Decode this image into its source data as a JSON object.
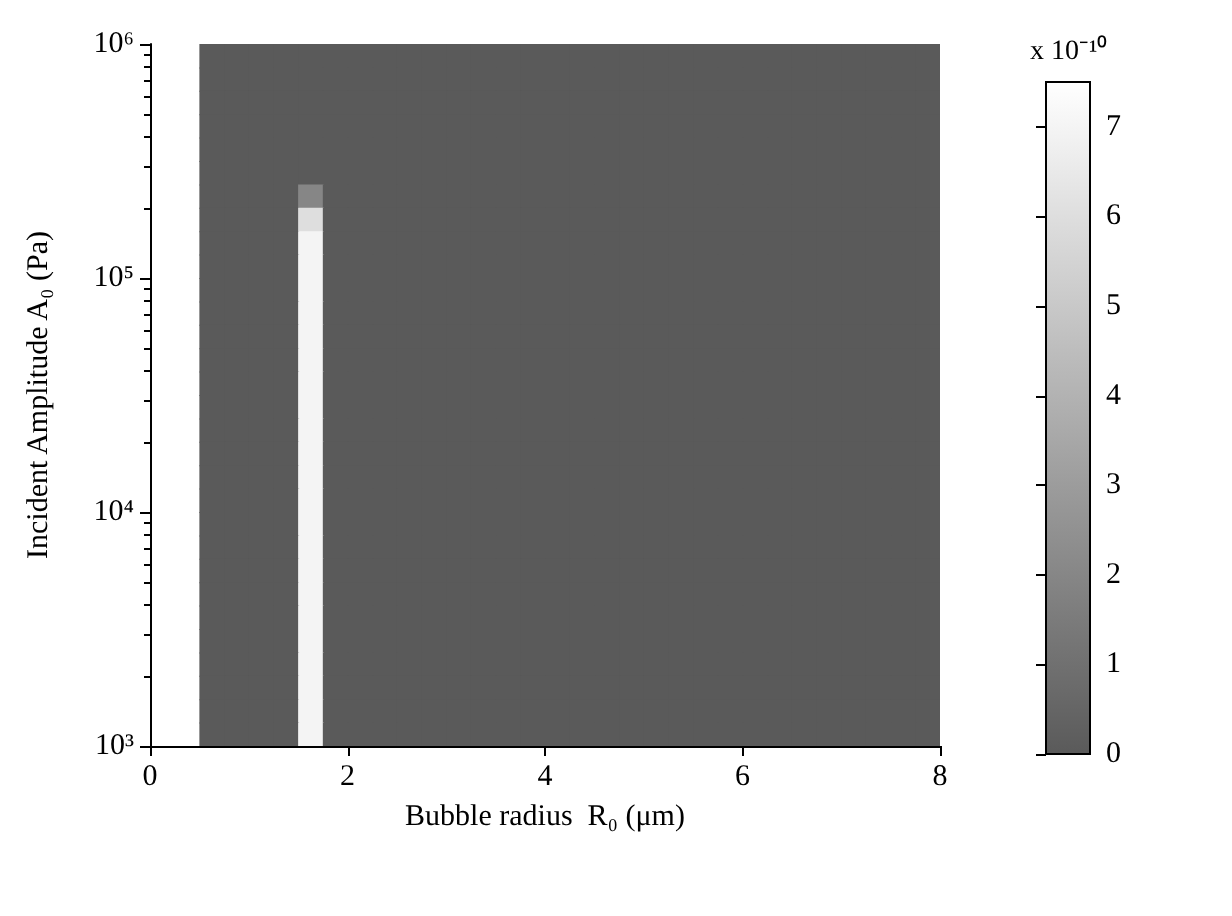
{
  "chart_data": {
    "type": "heatmap",
    "xlabel": "Bubble radius  R₀ (μm)",
    "ylabel": "Incident Amplitude A₀ (Pa)",
    "clabel": "x 10⁻¹⁰",
    "x": [
      0.625,
      0.875,
      1.125,
      1.375,
      1.625,
      1.875,
      2.125,
      2.375,
      2.625,
      2.875,
      3.125,
      3.375,
      3.625,
      3.875,
      4.125,
      4.375,
      4.625,
      4.875,
      5.125,
      5.375,
      5.625,
      5.875,
      6.125,
      6.375,
      6.625,
      6.875,
      7.125,
      7.375,
      7.625,
      7.875
    ],
    "cells": [
      [
        0,
        0,
        0,
        0,
        0,
        0,
        0,
        0,
        0,
        0,
        0,
        0,
        0,
        0,
        0,
        0,
        0,
        0,
        0,
        0,
        0,
        0,
        0,
        0,
        0,
        0,
        0,
        0,
        0,
        0
      ],
      [
        0,
        0,
        0,
        0,
        0,
        0,
        0,
        0,
        0,
        0,
        0,
        0,
        0,
        0,
        0,
        0,
        0,
        0,
        0,
        0,
        0,
        0,
        0,
        0,
        0,
        0,
        0,
        0,
        0,
        0
      ],
      [
        0,
        0,
        0,
        0,
        0,
        0,
        0,
        0,
        0,
        0,
        0,
        0,
        0,
        0,
        0,
        0,
        0,
        0,
        0,
        0,
        0,
        0,
        0,
        0,
        0,
        0,
        0,
        0,
        0,
        0
      ],
      [
        0,
        0,
        0,
        0,
        0,
        0,
        0,
        0,
        0,
        0,
        0,
        0,
        0,
        0,
        0,
        0,
        0,
        0,
        0,
        0,
        0,
        0,
        0,
        0,
        0,
        0,
        0,
        0,
        0,
        0
      ],
      [
        0,
        0,
        0,
        0,
        0,
        0,
        0,
        0,
        0,
        0,
        0,
        0,
        0,
        0,
        0,
        0,
        0,
        0,
        0,
        0,
        0,
        0,
        0,
        0,
        0,
        0,
        0,
        0,
        0,
        0
      ],
      [
        0,
        0,
        0,
        0,
        0,
        0,
        0,
        0,
        0,
        0,
        0,
        0,
        0,
        0,
        0,
        0,
        0,
        0,
        0,
        0,
        0,
        0,
        0,
        0,
        0,
        0,
        0,
        0,
        0,
        0
      ],
      [
        0,
        0,
        0,
        0,
        2,
        0,
        0,
        0,
        0,
        0,
        0,
        0,
        0,
        0,
        0,
        0,
        0,
        0,
        0,
        0,
        0,
        0,
        0,
        0,
        0,
        0,
        0,
        0,
        0,
        0
      ],
      [
        0,
        0,
        0,
        0,
        6,
        0,
        0,
        0,
        0,
        0,
        0,
        0,
        0,
        0,
        0,
        0,
        0,
        0,
        0,
        0,
        0,
        0,
        0,
        0,
        0,
        0,
        0,
        0,
        0,
        0
      ],
      [
        0,
        0,
        0,
        0,
        7,
        0,
        0,
        0,
        0,
        0,
        0,
        0,
        0,
        0,
        0,
        0,
        0,
        0,
        0,
        0,
        0,
        0,
        0,
        0,
        0,
        0,
        0,
        0,
        0,
        0
      ],
      [
        0,
        0,
        0,
        0,
        7,
        0,
        0,
        0,
        0,
        0,
        0,
        0,
        0,
        0,
        0,
        0,
        0,
        0,
        0,
        0,
        0,
        0,
        0,
        0,
        0,
        0,
        0,
        0,
        0,
        0
      ],
      [
        0,
        0,
        0,
        0,
        7,
        0,
        0,
        0,
        0,
        0,
        0,
        0,
        0,
        0,
        0,
        0,
        0,
        0,
        0,
        0,
        0,
        0,
        0,
        0,
        0,
        0,
        0,
        0,
        0,
        0
      ],
      [
        0,
        0,
        0,
        0,
        7,
        0,
        0,
        0,
        0,
        0,
        0,
        0,
        0,
        0,
        0,
        0,
        0,
        0,
        0,
        0,
        0,
        0,
        0,
        0,
        0,
        0,
        0,
        0,
        0,
        0
      ],
      [
        0,
        0,
        0,
        0,
        7,
        0,
        0,
        0,
        0,
        0,
        0,
        0,
        0,
        0,
        0,
        0,
        0,
        0,
        0,
        0,
        0,
        0,
        0,
        0,
        0,
        0,
        0,
        0,
        0,
        0
      ],
      [
        0,
        0,
        0,
        0,
        7,
        0,
        0,
        0,
        0,
        0,
        0,
        0,
        0,
        0,
        0,
        0,
        0,
        0,
        0,
        0,
        0,
        0,
        0,
        0,
        0,
        0,
        0,
        0,
        0,
        0
      ],
      [
        0,
        0,
        0,
        0,
        7,
        0,
        0,
        0,
        0,
        0,
        0,
        0,
        0,
        0,
        0,
        0,
        0,
        0,
        0,
        0,
        0,
        0,
        0,
        0,
        0,
        0,
        0,
        0,
        0,
        0
      ],
      [
        0,
        0,
        0,
        0,
        7,
        0,
        0,
        0,
        0,
        0,
        0,
        0,
        0,
        0,
        0,
        0,
        0,
        0,
        0,
        0,
        0,
        0,
        0,
        0,
        0,
        0,
        0,
        0,
        0,
        0
      ],
      [
        0,
        0,
        0,
        0,
        7,
        0,
        0,
        0,
        0,
        0,
        0,
        0,
        0,
        0,
        0,
        0,
        0,
        0,
        0,
        0,
        0,
        0,
        0,
        0,
        0,
        0,
        0,
        0,
        0,
        0
      ],
      [
        0,
        0,
        0,
        0,
        7,
        0,
        0,
        0,
        0,
        0,
        0,
        0,
        0,
        0,
        0,
        0,
        0,
        0,
        0,
        0,
        0,
        0,
        0,
        0,
        0,
        0,
        0,
        0,
        0,
        0
      ],
      [
        0,
        0,
        0,
        0,
        7,
        0,
        0,
        0,
        0,
        0,
        0,
        0,
        0,
        0,
        0,
        0,
        0,
        0,
        0,
        0,
        0,
        0,
        0,
        0,
        0,
        0,
        0,
        0,
        0,
        0
      ],
      [
        0,
        0,
        0,
        0,
        7,
        0,
        0,
        0,
        0,
        0,
        0,
        0,
        0,
        0,
        0,
        0,
        0,
        0,
        0,
        0,
        0,
        0,
        0,
        0,
        0,
        0,
        0,
        0,
        0,
        0
      ],
      [
        0,
        0,
        0,
        0,
        7,
        0,
        0,
        0,
        0,
        0,
        0,
        0,
        0,
        0,
        0,
        0,
        0,
        0,
        0,
        0,
        0,
        0,
        0,
        0,
        0,
        0,
        0,
        0,
        0,
        0
      ],
      [
        0,
        0,
        0,
        0,
        7,
        0,
        0,
        0,
        0,
        0,
        0,
        0,
        0,
        0,
        0,
        0,
        0,
        0,
        0,
        0,
        0,
        0,
        0,
        0,
        0,
        0,
        0,
        0,
        0,
        0
      ],
      [
        0,
        0,
        0,
        0,
        7,
        0,
        0,
        0,
        0,
        0,
        0,
        0,
        0,
        0,
        0,
        0,
        0,
        0,
        0,
        0,
        0,
        0,
        0,
        0,
        0,
        0,
        0,
        0,
        0,
        0
      ],
      [
        0,
        0,
        0,
        0,
        7,
        0,
        0,
        0,
        0,
        0,
        0,
        0,
        0,
        0,
        0,
        0,
        0,
        0,
        0,
        0,
        0,
        0,
        0,
        0,
        0,
        0,
        0,
        0,
        0,
        0
      ],
      [
        0,
        0,
        0,
        0,
        7,
        0,
        0,
        0,
        0,
        0,
        0,
        0,
        0,
        0,
        0,
        0,
        0,
        0,
        0,
        0,
        0,
        0,
        0,
        0,
        0,
        0,
        0,
        0,
        0,
        0
      ],
      [
        0,
        0,
        0,
        0,
        7,
        0,
        0,
        0,
        0,
        0,
        0,
        0,
        0,
        0,
        0,
        0,
        0,
        0,
        0,
        0,
        0,
        0,
        0,
        0,
        0,
        0,
        0,
        0,
        0,
        0
      ],
      [
        0,
        0,
        0,
        0,
        7,
        0,
        0,
        0,
        0,
        0,
        0,
        0,
        0,
        0,
        0,
        0,
        0,
        0,
        0,
        0,
        0,
        0,
        0,
        0,
        0,
        0,
        0,
        0,
        0,
        0
      ],
      [
        0,
        0,
        0,
        0,
        7,
        0,
        0,
        0,
        0,
        0,
        0,
        0,
        0,
        0,
        0,
        0,
        0,
        0,
        0,
        0,
        0,
        0,
        0,
        0,
        0,
        0,
        0,
        0,
        0,
        0
      ],
      [
        0,
        0,
        0,
        0,
        7,
        0,
        0,
        0,
        0,
        0,
        0,
        0,
        0,
        0,
        0,
        0,
        0,
        0,
        0,
        0,
        0,
        0,
        0,
        0,
        0,
        0,
        0,
        0,
        0,
        0
      ],
      [
        0,
        0,
        0,
        0,
        7,
        0,
        0,
        0,
        0,
        0,
        0,
        0,
        0,
        0,
        0,
        0,
        0,
        0,
        0,
        0,
        0,
        0,
        0,
        0,
        0,
        0,
        0,
        0,
        0,
        0
      ]
    ],
    "xlim": [
      0,
      8
    ],
    "xticks": [
      0,
      2,
      4,
      6,
      8
    ],
    "ylim": [
      1000,
      1000000
    ],
    "log": "y",
    "yticks": [
      {
        "value": 1000,
        "label": "10³"
      },
      {
        "value": 10000,
        "label": "10⁴"
      },
      {
        "value": 100000,
        "label": "10⁵"
      },
      {
        "value": 1000000,
        "label": "10⁶"
      }
    ],
    "clim": [
      0,
      7.5
    ],
    "cticks": [
      0,
      1,
      2,
      3,
      4,
      5,
      6,
      7
    ]
  }
}
